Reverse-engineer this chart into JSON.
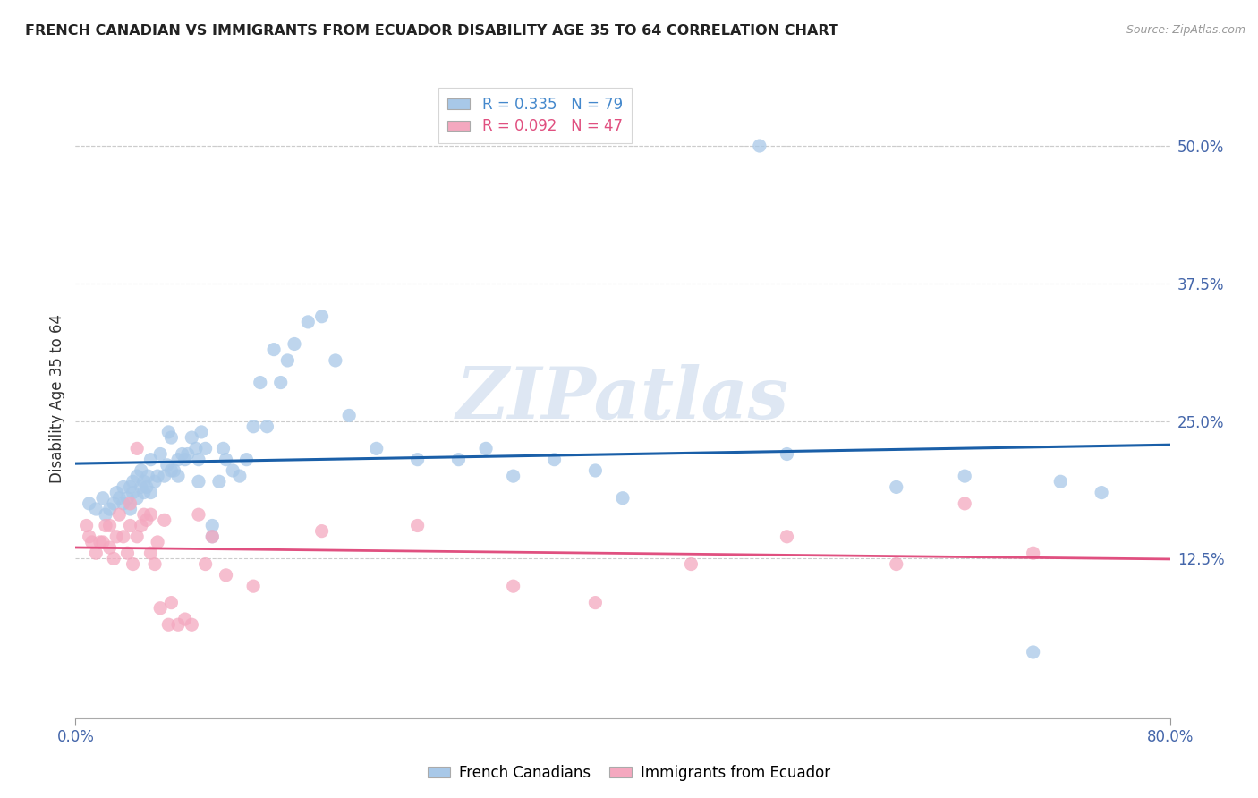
{
  "title": "FRENCH CANADIAN VS IMMIGRANTS FROM ECUADOR DISABILITY AGE 35 TO 64 CORRELATION CHART",
  "source": "Source: ZipAtlas.com",
  "ylabel": "Disability Age 35 to 64",
  "xlim": [
    0.0,
    0.8
  ],
  "ylim": [
    -0.02,
    0.56
  ],
  "x_ticks": [
    0.0,
    0.8
  ],
  "x_tick_labels": [
    "0.0%",
    "80.0%"
  ],
  "y_tick_labels": [
    "12.5%",
    "25.0%",
    "37.5%",
    "50.0%"
  ],
  "y_ticks": [
    0.125,
    0.25,
    0.375,
    0.5
  ],
  "blue_R": 0.335,
  "blue_N": 79,
  "pink_R": 0.092,
  "pink_N": 47,
  "blue_color": "#a8c8e8",
  "pink_color": "#f4a8bf",
  "blue_line_color": "#1a5fa8",
  "pink_line_color": "#e05080",
  "watermark": "ZIPatlas",
  "legend_label_blue": "French Canadians",
  "legend_label_pink": "Immigrants from Ecuador",
  "blue_scatter_x": [
    0.01,
    0.015,
    0.02,
    0.022,
    0.025,
    0.028,
    0.03,
    0.032,
    0.035,
    0.035,
    0.038,
    0.04,
    0.04,
    0.042,
    0.042,
    0.045,
    0.045,
    0.048,
    0.048,
    0.05,
    0.05,
    0.052,
    0.053,
    0.055,
    0.055,
    0.058,
    0.06,
    0.062,
    0.065,
    0.067,
    0.068,
    0.07,
    0.07,
    0.072,
    0.075,
    0.075,
    0.078,
    0.08,
    0.082,
    0.085,
    0.088,
    0.09,
    0.09,
    0.092,
    0.095,
    0.1,
    0.1,
    0.105,
    0.108,
    0.11,
    0.115,
    0.12,
    0.125,
    0.13,
    0.135,
    0.14,
    0.145,
    0.15,
    0.155,
    0.16,
    0.17,
    0.18,
    0.19,
    0.2,
    0.22,
    0.25,
    0.28,
    0.3,
    0.32,
    0.35,
    0.38,
    0.4,
    0.5,
    0.52,
    0.6,
    0.65,
    0.7,
    0.72,
    0.75
  ],
  "blue_scatter_y": [
    0.175,
    0.17,
    0.18,
    0.165,
    0.17,
    0.175,
    0.185,
    0.18,
    0.175,
    0.19,
    0.18,
    0.19,
    0.17,
    0.185,
    0.195,
    0.18,
    0.2,
    0.19,
    0.205,
    0.195,
    0.185,
    0.19,
    0.2,
    0.185,
    0.215,
    0.195,
    0.2,
    0.22,
    0.2,
    0.21,
    0.24,
    0.205,
    0.235,
    0.205,
    0.2,
    0.215,
    0.22,
    0.215,
    0.22,
    0.235,
    0.225,
    0.195,
    0.215,
    0.24,
    0.225,
    0.155,
    0.145,
    0.195,
    0.225,
    0.215,
    0.205,
    0.2,
    0.215,
    0.245,
    0.285,
    0.245,
    0.315,
    0.285,
    0.305,
    0.32,
    0.34,
    0.345,
    0.305,
    0.255,
    0.225,
    0.215,
    0.215,
    0.225,
    0.2,
    0.215,
    0.205,
    0.18,
    0.5,
    0.22,
    0.19,
    0.2,
    0.04,
    0.195,
    0.185
  ],
  "pink_scatter_x": [
    0.008,
    0.01,
    0.012,
    0.015,
    0.018,
    0.02,
    0.022,
    0.025,
    0.025,
    0.028,
    0.03,
    0.032,
    0.035,
    0.038,
    0.04,
    0.04,
    0.042,
    0.045,
    0.045,
    0.048,
    0.05,
    0.052,
    0.055,
    0.055,
    0.058,
    0.06,
    0.062,
    0.065,
    0.068,
    0.07,
    0.075,
    0.08,
    0.085,
    0.09,
    0.095,
    0.1,
    0.11,
    0.13,
    0.18,
    0.25,
    0.32,
    0.38,
    0.45,
    0.52,
    0.6,
    0.65,
    0.7
  ],
  "pink_scatter_y": [
    0.155,
    0.145,
    0.14,
    0.13,
    0.14,
    0.14,
    0.155,
    0.135,
    0.155,
    0.125,
    0.145,
    0.165,
    0.145,
    0.13,
    0.155,
    0.175,
    0.12,
    0.145,
    0.225,
    0.155,
    0.165,
    0.16,
    0.165,
    0.13,
    0.12,
    0.14,
    0.08,
    0.16,
    0.065,
    0.085,
    0.065,
    0.07,
    0.065,
    0.165,
    0.12,
    0.145,
    0.11,
    0.1,
    0.15,
    0.155,
    0.1,
    0.085,
    0.12,
    0.145,
    0.12,
    0.175,
    0.13
  ]
}
